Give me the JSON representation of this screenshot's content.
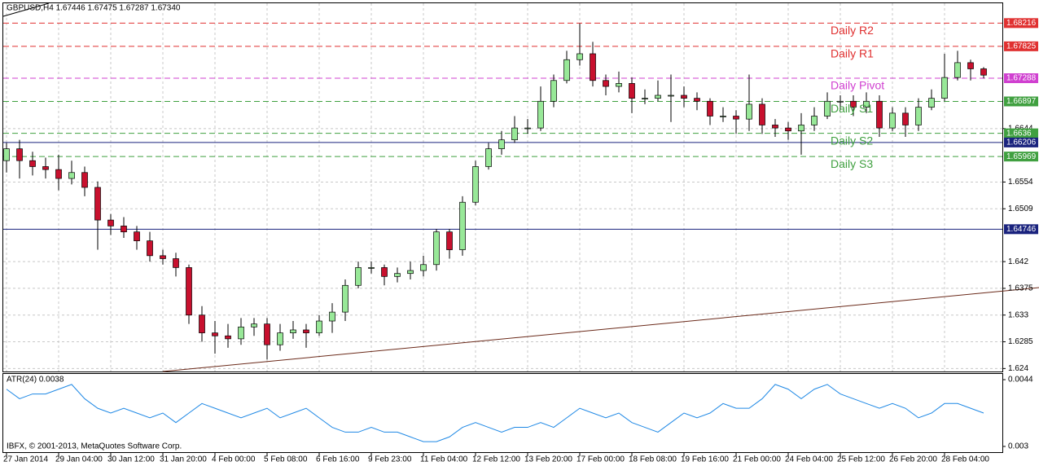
{
  "chart_data": [
    {
      "type": "candlestick",
      "title": "GBPUSD,H4  1.67446 1.67475 1.67287 1.67340",
      "credit": "IBFX, © 2001-2013, MetaQuotes Software Corp.",
      "categories": [
        "27 Jan 2014",
        null,
        null,
        null,
        "29 Jan 04:00",
        null,
        null,
        null,
        "30 Jan 12:00",
        null,
        null,
        null,
        "31 Jan 20:00",
        null,
        null,
        null,
        "4 Feb 00:00",
        null,
        null,
        null,
        "5 Feb 08:00",
        null,
        null,
        null,
        "6 Feb 16:00",
        null,
        null,
        null,
        "9 Feb 23:00",
        null,
        null,
        null,
        "11 Feb 04:00",
        null,
        null,
        null,
        "12 Feb 12:00",
        null,
        null,
        null,
        "13 Feb 20:00",
        null,
        null,
        null,
        "17 Feb 00:00",
        null,
        null,
        null,
        "18 Feb 08:00",
        null,
        null,
        null,
        "19 Feb 16:00",
        null,
        null,
        null,
        "21 Feb 00:00",
        null,
        null,
        null,
        "24 Feb 04:00",
        null,
        null,
        null,
        "25 Feb 12:00",
        null,
        null,
        null,
        "26 Feb 20:00",
        null,
        null,
        null,
        "28 Feb 04:00",
        null,
        null,
        null
      ],
      "open": [
        1.659,
        1.661,
        1.659,
        1.658,
        1.6575,
        1.656,
        1.657,
        1.6545,
        1.649,
        1.648,
        1.647,
        1.6455,
        1.643,
        1.6425,
        1.641,
        1.633,
        1.63,
        1.6295,
        1.629,
        1.631,
        1.6315,
        1.628,
        1.63,
        1.6305,
        1.63,
        1.632,
        1.6335,
        1.638,
        1.641,
        1.641,
        1.6395,
        1.64,
        1.6405,
        1.6415,
        1.647,
        1.644,
        1.652,
        1.658,
        1.661,
        1.6625,
        1.6645,
        1.6645,
        1.669,
        1.6725,
        1.676,
        1.677,
        1.6725,
        1.6715,
        1.672,
        1.6695,
        1.6695,
        1.67,
        1.67,
        1.6695,
        1.669,
        1.6665,
        1.6665,
        1.666,
        1.6685,
        1.665,
        1.6645,
        1.664,
        1.665,
        1.6665,
        1.669,
        1.669,
        1.668,
        1.669,
        1.6645,
        1.667,
        1.665,
        1.668,
        1.6695,
        1.673,
        1.6755,
        1.67446
      ],
      "high": [
        1.662,
        1.6625,
        1.6605,
        1.6595,
        1.66,
        1.659,
        1.658,
        1.6555,
        1.65,
        1.6495,
        1.648,
        1.647,
        1.644,
        1.6435,
        1.6415,
        1.6345,
        1.632,
        1.6315,
        1.6325,
        1.6325,
        1.6325,
        1.6315,
        1.632,
        1.6315,
        1.633,
        1.635,
        1.639,
        1.642,
        1.642,
        1.6415,
        1.641,
        1.642,
        1.643,
        1.6475,
        1.6475,
        1.653,
        1.659,
        1.662,
        1.664,
        1.6665,
        1.666,
        1.6715,
        1.6735,
        1.6775,
        1.6821,
        1.679,
        1.6735,
        1.674,
        1.673,
        1.671,
        1.6725,
        1.6735,
        1.6715,
        1.6705,
        1.6695,
        1.668,
        1.6675,
        1.6735,
        1.6695,
        1.666,
        1.6655,
        1.667,
        1.668,
        1.6705,
        1.67,
        1.67,
        1.6705,
        1.67,
        1.668,
        1.668,
        1.6695,
        1.671,
        1.677,
        1.6775,
        1.676,
        1.67475
      ],
      "low": [
        1.657,
        1.656,
        1.6565,
        1.656,
        1.654,
        1.655,
        1.653,
        1.644,
        1.6465,
        1.646,
        1.644,
        1.642,
        1.6415,
        1.6395,
        1.6315,
        1.6285,
        1.6265,
        1.6275,
        1.628,
        1.6295,
        1.6255,
        1.627,
        1.629,
        1.6275,
        1.6295,
        1.63,
        1.632,
        1.6375,
        1.64,
        1.638,
        1.6385,
        1.639,
        1.6395,
        1.6405,
        1.6425,
        1.643,
        1.6515,
        1.6575,
        1.66,
        1.662,
        1.6635,
        1.664,
        1.668,
        1.672,
        1.675,
        1.6715,
        1.67,
        1.6705,
        1.667,
        1.6685,
        1.669,
        1.6655,
        1.668,
        1.6675,
        1.665,
        1.6655,
        1.6635,
        1.664,
        1.6635,
        1.663,
        1.6625,
        1.66,
        1.664,
        1.666,
        1.6675,
        1.6665,
        1.667,
        1.663,
        1.664,
        1.663,
        1.664,
        1.6675,
        1.669,
        1.6725,
        1.6725,
        1.67287
      ],
      "close": [
        1.661,
        1.659,
        1.658,
        1.6575,
        1.656,
        1.657,
        1.6545,
        1.649,
        1.648,
        1.647,
        1.6455,
        1.643,
        1.6425,
        1.641,
        1.633,
        1.63,
        1.6295,
        1.629,
        1.631,
        1.6315,
        1.628,
        1.63,
        1.6305,
        1.63,
        1.632,
        1.6335,
        1.638,
        1.641,
        1.641,
        1.6395,
        1.64,
        1.6405,
        1.6415,
        1.647,
        1.644,
        1.652,
        1.658,
        1.661,
        1.6625,
        1.6645,
        1.6645,
        1.669,
        1.6725,
        1.676,
        1.677,
        1.6725,
        1.6715,
        1.672,
        1.6695,
        1.6695,
        1.67,
        1.67,
        1.6695,
        1.669,
        1.6665,
        1.6665,
        1.666,
        1.6685,
        1.665,
        1.6645,
        1.664,
        1.665,
        1.6665,
        1.669,
        1.669,
        1.668,
        1.669,
        1.6645,
        1.667,
        1.665,
        1.668,
        1.6695,
        1.673,
        1.6755,
        1.67446,
        1.6734
      ],
      "up_color": "#98e898",
      "down_color": "#c8102e",
      "ylim": [
        1.6235,
        1.6855
      ],
      "yticks": [
        1.624,
        1.6285,
        1.633,
        1.6375,
        1.642,
        1.6509,
        1.6554,
        1.6644
      ],
      "grid": true,
      "levels": [
        {
          "value": 1.68216,
          "name": "Daily R2",
          "color": "#e03030",
          "dashed": true
        },
        {
          "value": 1.67825,
          "name": "Daily R1",
          "color": "#e03030",
          "dashed": true
        },
        {
          "value": 1.67288,
          "name": "Daily Pivot",
          "color": "#d040d0",
          "dashed": true
        },
        {
          "value": 1.66897,
          "name": "Daily S1",
          "color": "#40a040",
          "dashed": true
        },
        {
          "value": 1.6636,
          "name": "Daily S2",
          "color": "#40a040",
          "dashed": true
        },
        {
          "value": 1.66206,
          "color": "#1a237e",
          "dashed": false
        },
        {
          "value": 1.65969,
          "name": "Daily S3",
          "color": "#40a040",
          "dashed": true
        },
        {
          "value": 1.64746,
          "color": "#1a237e",
          "dashed": false
        }
      ]
    },
    {
      "type": "line",
      "title": "ATR(24) 0.0038",
      "values": [
        0.0042,
        0.004,
        0.0041,
        0.0041,
        0.0042,
        0.0043,
        0.004,
        0.0038,
        0.0037,
        0.0038,
        0.0037,
        0.0036,
        0.0037,
        0.0035,
        0.0037,
        0.0039,
        0.0038,
        0.0037,
        0.0036,
        0.0037,
        0.0038,
        0.0036,
        0.0037,
        0.0038,
        0.0036,
        0.0034,
        0.0033,
        0.0033,
        0.0034,
        0.0033,
        0.0033,
        0.0032,
        0.0031,
        0.0031,
        0.0032,
        0.0034,
        0.0035,
        0.0034,
        0.0033,
        0.0034,
        0.0034,
        0.0035,
        0.0034,
        0.0036,
        0.0038,
        0.0037,
        0.0036,
        0.0037,
        0.0035,
        0.0034,
        0.0033,
        0.0035,
        0.0037,
        0.0036,
        0.0037,
        0.0039,
        0.0038,
        0.0038,
        0.004,
        0.0043,
        0.0042,
        0.004,
        0.0042,
        0.0043,
        0.0041,
        0.004,
        0.0039,
        0.0038,
        0.0039,
        0.0038,
        0.0036,
        0.0037,
        0.0039,
        0.0039,
        0.0038,
        0.0037
      ],
      "color": "#1e88e5",
      "ylim": [
        0.00288,
        0.00452
      ],
      "yticks": [
        0.003,
        0.0044
      ]
    }
  ]
}
